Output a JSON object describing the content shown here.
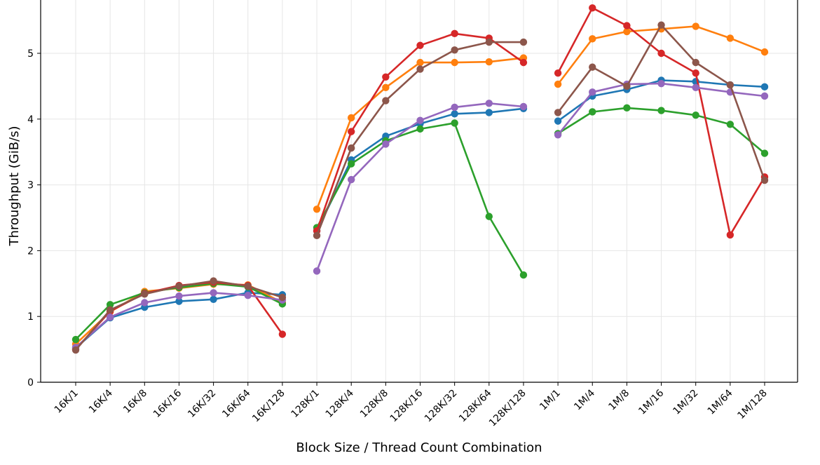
{
  "chart_data": {
    "type": "line",
    "xlabel": "Block Size / Thread Count Combination",
    "ylabel": "Throughput (GiB/s)",
    "ylim": [
      0,
      5.8
    ],
    "y_ticks": [
      0,
      1,
      2,
      3,
      4,
      5
    ],
    "grid": true,
    "categories": [
      "16K/1",
      "16K/4",
      "16K/8",
      "16K/16",
      "16K/32",
      "16K/64",
      "16K/128",
      "128K/1",
      "128K/4",
      "128K/8",
      "128K/16",
      "128K/32",
      "128K/64",
      "128K/128",
      "1M/1",
      "1M/4",
      "1M/8",
      "1M/16",
      "1M/32",
      "1M/64",
      "1M/128"
    ],
    "groups": [
      [
        0,
        6
      ],
      [
        7,
        13
      ],
      [
        14,
        20
      ]
    ],
    "series": [
      {
        "color": "#1f77b4",
        "values": [
          0.52,
          0.98,
          1.14,
          1.23,
          1.26,
          1.36,
          1.33,
          2.3,
          3.38,
          3.74,
          3.93,
          4.08,
          4.1,
          4.16,
          3.97,
          4.35,
          4.45,
          4.59,
          4.57,
          4.52,
          4.49
        ]
      },
      {
        "color": "#ff7f0e",
        "values": [
          0.58,
          1.07,
          1.38,
          1.43,
          1.49,
          1.48,
          1.21,
          2.63,
          4.02,
          4.48,
          4.86,
          4.86,
          4.87,
          4.93,
          4.53,
          5.22,
          5.33,
          5.37,
          5.41,
          5.23,
          5.02
        ]
      },
      {
        "color": "#2ca02c",
        "values": [
          0.65,
          1.18,
          1.36,
          1.44,
          1.5,
          1.45,
          1.19,
          2.35,
          3.32,
          3.67,
          3.85,
          3.94,
          2.52,
          1.63,
          3.78,
          4.11,
          4.17,
          4.13,
          4.06,
          3.92,
          3.48
        ]
      },
      {
        "color": "#d62728",
        "values": [
          0.5,
          1.08,
          1.35,
          1.47,
          1.52,
          1.47,
          0.73,
          2.3,
          3.81,
          4.64,
          5.12,
          5.3,
          5.23,
          4.86,
          4.7,
          5.69,
          5.42,
          5.0,
          4.7,
          2.24,
          3.12
        ]
      },
      {
        "color": "#9467bd",
        "values": [
          0.53,
          0.99,
          1.21,
          1.31,
          1.36,
          1.32,
          1.25,
          1.69,
          3.08,
          3.62,
          3.98,
          4.18,
          4.24,
          4.19,
          3.76,
          4.41,
          4.53,
          4.54,
          4.48,
          4.41,
          4.35
        ]
      },
      {
        "color": "#8c564b",
        "values": [
          0.49,
          1.1,
          1.34,
          1.46,
          1.54,
          1.46,
          1.29,
          2.23,
          3.56,
          4.28,
          4.76,
          5.05,
          5.17,
          5.17,
          4.1,
          4.79,
          4.5,
          5.43,
          4.86,
          4.52,
          3.07
        ]
      }
    ]
  }
}
